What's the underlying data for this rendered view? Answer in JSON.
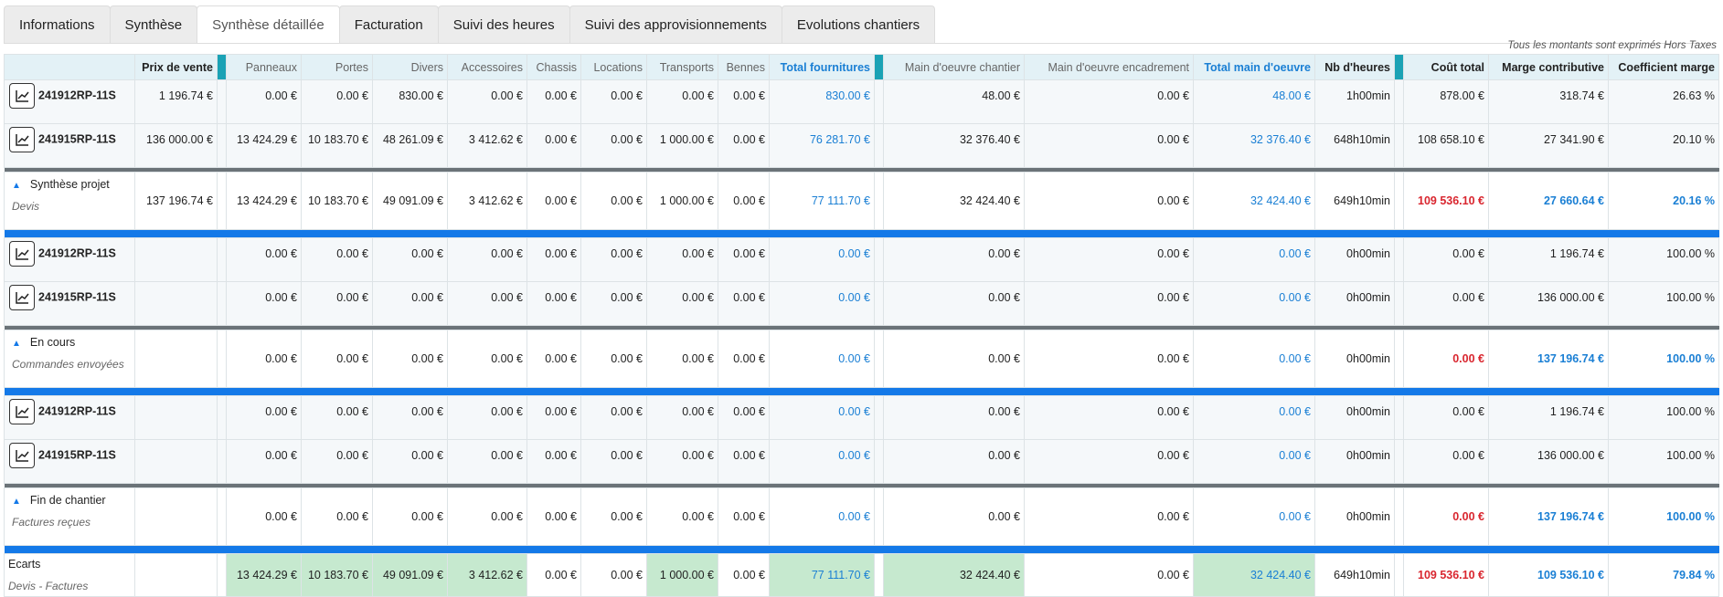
{
  "tabs": [
    "Informations",
    "Synthèse",
    "Synthèse détaillée",
    "Facturation",
    "Suivi des heures",
    "Suivi des approvisionnements",
    "Evolutions chantiers"
  ],
  "note": "Tous les montants sont exprimés Hors Taxes",
  "table": {
    "columns": [
      "Prix de vente",
      "Panneaux",
      "Portes",
      "Divers",
      "Accessoires",
      "Chassis",
      "Locations",
      "Transports",
      "Bennes",
      "Total fournitures",
      "Main d'oeuvre chantier",
      "Main d'oeuvre encadrement",
      "Total main d'oeuvre",
      "Nb d'heures",
      "Coût total",
      "Marge contributive",
      "Coefficient marge"
    ],
    "groups": [
      {
        "rows": [
          {
            "name": "241912RP-11S",
            "values": [
              "1 196.74 €",
              "0.00 €",
              "0.00 €",
              "830.00 €",
              "0.00 €",
              "0.00 €",
              "0.00 €",
              "0.00 €",
              "0.00 €",
              "830.00 €",
              "48.00 €",
              "0.00 €",
              "48.00 €",
              "1h00min",
              "878.00 €",
              "318.74 €",
              "26.63 %"
            ]
          },
          {
            "name": "241915RP-11S",
            "values": [
              "136 000.00 €",
              "13 424.29 €",
              "10 183.70 €",
              "48 261.09 €",
              "3 412.62 €",
              "0.00 €",
              "0.00 €",
              "1 000.00 €",
              "0.00 €",
              "76 281.70 €",
              "32 376.40 €",
              "0.00 €",
              "32 376.40 €",
              "648h10min",
              "108 658.10 €",
              "27 341.90 €",
              "20.10 %"
            ]
          }
        ],
        "summary": {
          "title": "Synthèse projet",
          "subtitle": "Devis",
          "values": [
            "137 196.74 €",
            "13 424.29 €",
            "10 183.70 €",
            "49 091.09 €",
            "3 412.62 €",
            "0.00 €",
            "0.00 €",
            "1 000.00 €",
            "0.00 €",
            "77 111.70 €",
            "32 424.40 €",
            "0.00 €",
            "32 424.40 €",
            "649h10min",
            "109 536.10 €",
            "27 660.64 €",
            "20.16 %"
          ]
        }
      },
      {
        "rows": [
          {
            "name": "241912RP-11S",
            "values": [
              null,
              "0.00 €",
              "0.00 €",
              "0.00 €",
              "0.00 €",
              "0.00 €",
              "0.00 €",
              "0.00 €",
              "0.00 €",
              "0.00 €",
              "0.00 €",
              "0.00 €",
              "0.00 €",
              "0h00min",
              "0.00 €",
              "1 196.74 €",
              "100.00 %"
            ]
          },
          {
            "name": "241915RP-11S",
            "values": [
              null,
              "0.00 €",
              "0.00 €",
              "0.00 €",
              "0.00 €",
              "0.00 €",
              "0.00 €",
              "0.00 €",
              "0.00 €",
              "0.00 €",
              "0.00 €",
              "0.00 €",
              "0.00 €",
              "0h00min",
              "0.00 €",
              "136 000.00 €",
              "100.00 %"
            ]
          }
        ],
        "summary": {
          "title": "En cours",
          "subtitle": "Commandes envoyées",
          "values": [
            null,
            "0.00 €",
            "0.00 €",
            "0.00 €",
            "0.00 €",
            "0.00 €",
            "0.00 €",
            "0.00 €",
            "0.00 €",
            "0.00 €",
            "0.00 €",
            "0.00 €",
            "0.00 €",
            "0h00min",
            "0.00 €",
            "137 196.74 €",
            "100.00 %"
          ]
        }
      },
      {
        "rows": [
          {
            "name": "241912RP-11S",
            "values": [
              null,
              "0.00 €",
              "0.00 €",
              "0.00 €",
              "0.00 €",
              "0.00 €",
              "0.00 €",
              "0.00 €",
              "0.00 €",
              "0.00 €",
              "0.00 €",
              "0.00 €",
              "0.00 €",
              "0h00min",
              "0.00 €",
              "1 196.74 €",
              "100.00 %"
            ]
          },
          {
            "name": "241915RP-11S",
            "values": [
              null,
              "0.00 €",
              "0.00 €",
              "0.00 €",
              "0.00 €",
              "0.00 €",
              "0.00 €",
              "0.00 €",
              "0.00 €",
              "0.00 €",
              "0.00 €",
              "0.00 €",
              "0.00 €",
              "0h00min",
              "0.00 €",
              "136 000.00 €",
              "100.00 %"
            ]
          }
        ],
        "summary": {
          "title": "Fin de chantier",
          "subtitle": "Factures reçues",
          "values": [
            null,
            "0.00 €",
            "0.00 €",
            "0.00 €",
            "0.00 €",
            "0.00 €",
            "0.00 €",
            "0.00 €",
            "0.00 €",
            "0.00 €",
            "0.00 €",
            "0.00 €",
            "0.00 €",
            "0h00min",
            "0.00 €",
            "137 196.74 €",
            "100.00 %"
          ]
        }
      }
    ],
    "ecarts": {
      "title": "Ecarts",
      "subtitle": "Devis - Factures",
      "values": [
        null,
        "13 424.29 €",
        "10 183.70 €",
        "49 091.09 €",
        "3 412.62 €",
        "0.00 €",
        "0.00 €",
        "1 000.00 €",
        "0.00 €",
        "77 111.70 €",
        "32 424.40 €",
        "0.00 €",
        "32 424.40 €",
        "649h10min",
        "109 536.10 €",
        "109 536.10 €",
        "79.84 %"
      ]
    }
  }
}
